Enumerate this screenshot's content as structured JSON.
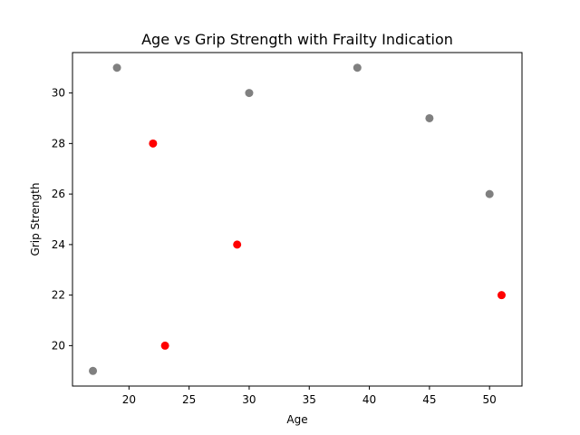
{
  "chart_data": {
    "type": "scatter",
    "title": "Age vs Grip Strength with Frailty Indication",
    "xlabel": "Age",
    "ylabel": "Grip Strength",
    "xlim": [
      15.3,
      52.7
    ],
    "ylim": [
      18.4,
      31.6
    ],
    "xticks": [
      20,
      25,
      30,
      35,
      40,
      45,
      50
    ],
    "yticks": [
      20,
      22,
      24,
      26,
      28,
      30
    ],
    "grid": false,
    "colors": {
      "frail": "#ff0000",
      "not_frail": "#808080"
    },
    "points": [
      {
        "x": 19,
        "y": 31,
        "color": "#808080"
      },
      {
        "x": 30,
        "y": 30,
        "color": "#808080"
      },
      {
        "x": 39,
        "y": 31,
        "color": "#808080"
      },
      {
        "x": 45,
        "y": 29,
        "color": "#808080"
      },
      {
        "x": 50,
        "y": 26,
        "color": "#808080"
      },
      {
        "x": 17,
        "y": 19,
        "color": "#808080"
      },
      {
        "x": 22,
        "y": 28,
        "color": "#ff0000"
      },
      {
        "x": 29,
        "y": 24,
        "color": "#ff0000"
      },
      {
        "x": 23,
        "y": 20,
        "color": "#ff0000"
      },
      {
        "x": 51,
        "y": 22,
        "color": "#ff0000"
      }
    ]
  }
}
